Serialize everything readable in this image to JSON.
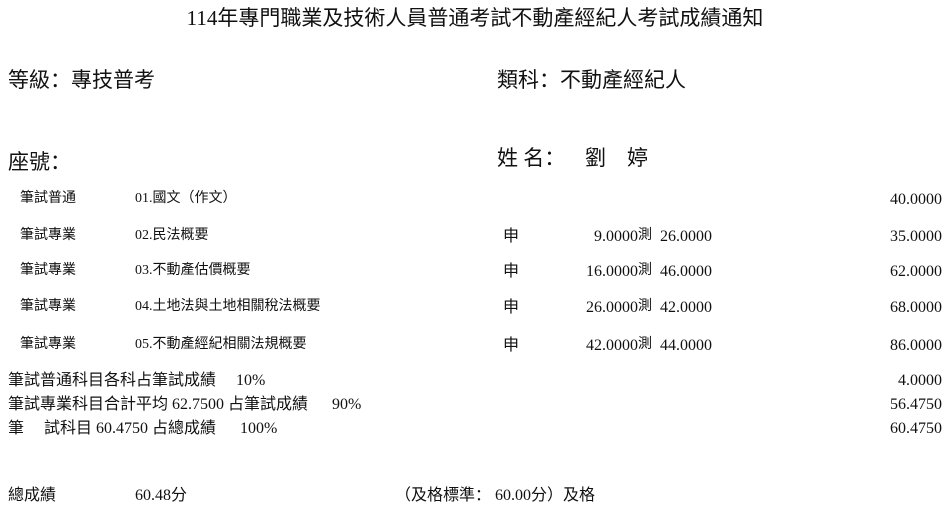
{
  "title": "114年專門職業及技術人員普通考試不動產經紀人考試成績通知",
  "grade": "等級：專技普考",
  "category": "類科：不動產經紀人",
  "seat_label": "座號：",
  "name_label": "姓 名：",
  "name": "劉　婷",
  "subjects": [
    {
      "type": "筆試普通",
      "name": "01.國文（作文）",
      "essay_mark": "",
      "essay": "",
      "choice_mark": "",
      "choice": "",
      "score": "40.0000"
    },
    {
      "type": "筆試專業",
      "name": "02.民法概要",
      "essay_mark": "申",
      "essay": "9.0000",
      "choice_mark": "測",
      "choice": "26.0000",
      "score": "35.0000"
    },
    {
      "type": "筆試專業",
      "name": "03.不動產估價概要",
      "essay_mark": "申",
      "essay": "16.0000",
      "choice_mark": "測",
      "choice": "46.0000",
      "score": "62.0000"
    },
    {
      "type": "筆試專業",
      "name": "04.土地法與土地相關稅法概要",
      "essay_mark": "申",
      "essay": "26.0000",
      "choice_mark": "測",
      "choice": "42.0000",
      "score": "68.0000"
    },
    {
      "type": "筆試專業",
      "name": "05.不動產經紀相關法規概要",
      "essay_mark": "申",
      "essay": "42.0000",
      "choice_mark": "測",
      "choice": "44.0000",
      "score": "86.0000"
    }
  ],
  "summary": [
    {
      "text": "筆試普通科目各科占筆試成績　 10%",
      "value": "4.0000"
    },
    {
      "text": "筆試專業科目合計平均 62.7500 占筆試成績　  90%",
      "value": "56.4750"
    },
    {
      "text": "筆　 試科目 60.4750 占總成績　  100%",
      "value": "60.4750"
    }
  ],
  "total_label": "總成績",
  "total_value": "60.48分",
  "pass_text": "（及格標準： 60.00分）及格"
}
